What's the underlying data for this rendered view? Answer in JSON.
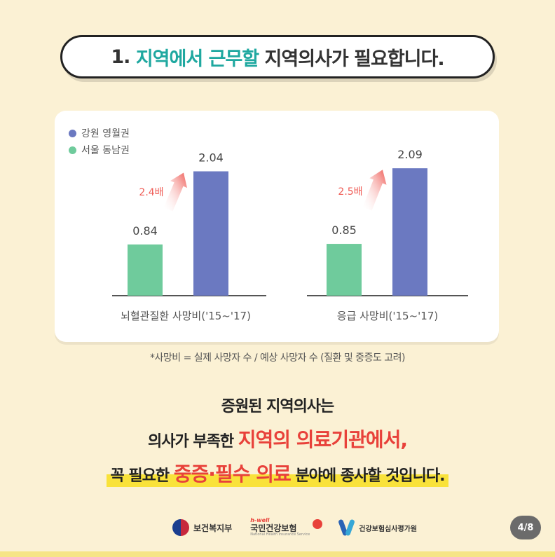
{
  "title": {
    "prefix": "1.",
    "hl1": "지역에서",
    "hl2": "근무할",
    "rest": "지역의사가 필요합니다."
  },
  "colors": {
    "gangwon": "#6b79c1",
    "seoul": "#6fcb9c",
    "arrow": "#ef5b55",
    "highlight_text": "#1fa8a0"
  },
  "chart_data": [
    {
      "type": "bar",
      "categories": [
        "서울 동남권",
        "강원 영월권"
      ],
      "values": [
        0.84,
        2.04
      ],
      "xlabel": "뇌혈관질환 사망비('15~'17)",
      "annotation": "2.4배"
    },
    {
      "type": "bar",
      "categories": [
        "서울 동남권",
        "강원 영월권"
      ],
      "values": [
        0.85,
        2.09
      ],
      "xlabel": "응급 사망비('15~'17)",
      "annotation": "2.5배"
    }
  ],
  "legend": [
    {
      "label": "강원 영월권"
    },
    {
      "label": "서울 동남권"
    }
  ],
  "footnote": "*사망비 = 실제 사망자 수 / 예상 사망자 수 (질환 및 중증도 고려)",
  "message": {
    "line1": "증원된 지역의사는",
    "line2_pre": "의사가 부족한 ",
    "line2_red": "지역의 의료기관에서,",
    "line3_pre": "꼭 필요한 ",
    "line3_red": "중증·필수 의료",
    "line3_post": " 분야에 종사할 것입니다."
  },
  "footer": {
    "logo1": "보건복지부",
    "logo2_small": "h-well",
    "logo2": "국민건강보험",
    "logo2_tiny": "National Health Insurance Service",
    "logo3": "건강보험심사평가원",
    "page": "4/8"
  }
}
